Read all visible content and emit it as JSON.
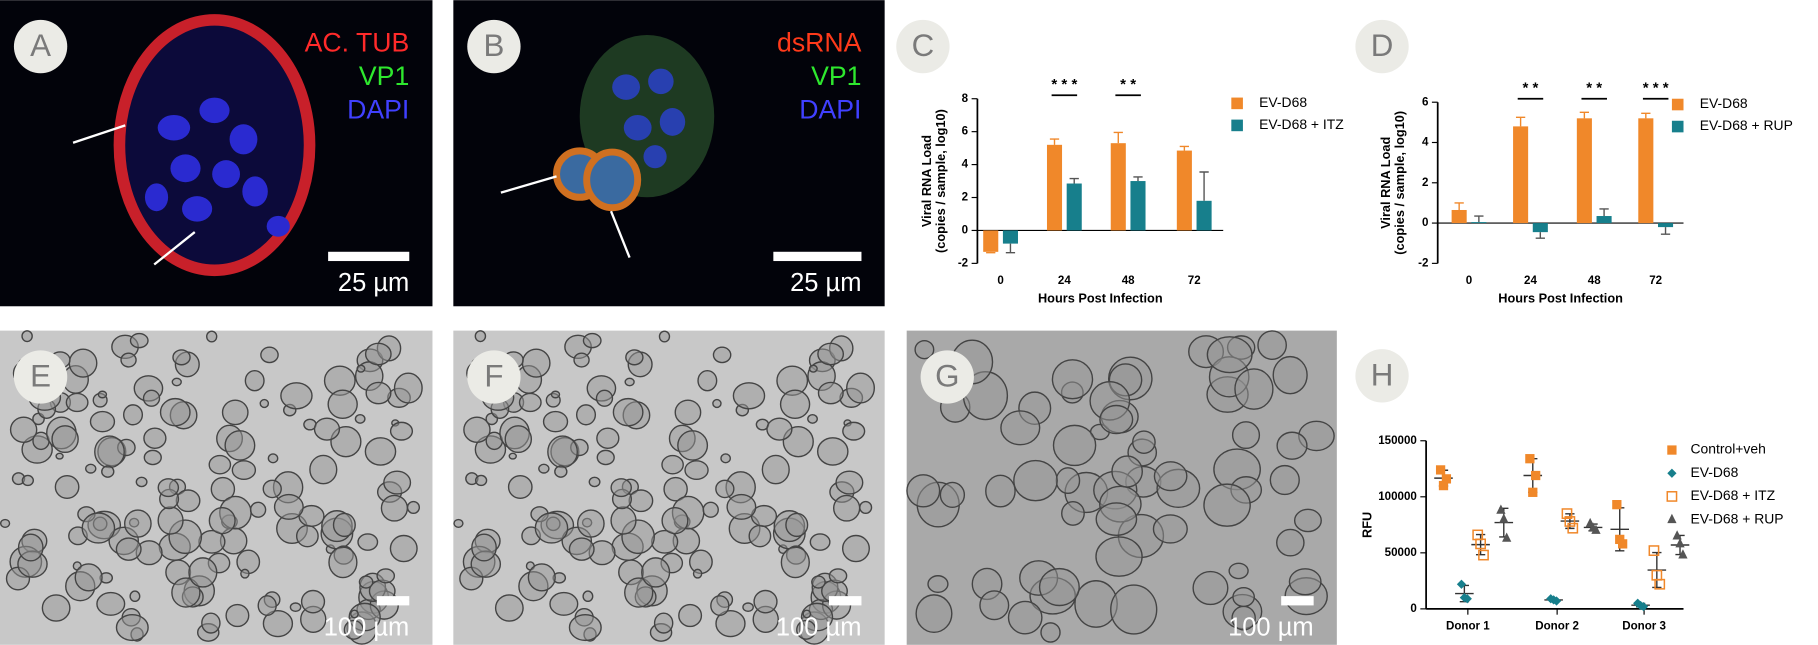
{
  "panels": [
    {
      "letter": "A",
      "labels": [
        {
          "text": "AC. TUB",
          "color": "#ff2a2a"
        },
        {
          "text": "VP1",
          "color": "#2ee82e"
        },
        {
          "text": "DAPI",
          "color": "#4040ff"
        }
      ],
      "scale": "25 µm"
    },
    {
      "letter": "B",
      "labels": [
        {
          "text": "dsRNA",
          "color": "#ff3a1a"
        },
        {
          "text": "VP1",
          "color": "#2ee82e"
        },
        {
          "text": "DAPI",
          "color": "#4040ff"
        }
      ],
      "scale": "25 µm"
    },
    {
      "letter": "E",
      "scale": "100 µm"
    },
    {
      "letter": "F",
      "scale": "100 µm"
    },
    {
      "letter": "G",
      "scale": "100 µm"
    }
  ],
  "chart_data": [
    {
      "type": "bar",
      "panel": "C",
      "xlabel": "Hours Post Infection",
      "ylabel": [
        "Viral RNA Load",
        "(copies / sample, log10)"
      ],
      "categories": [
        "0",
        "24",
        "48",
        "72"
      ],
      "series": [
        {
          "name": "EV-D68",
          "color": "#f0882a",
          "values": [
            -1.3,
            5.2,
            5.3,
            4.85
          ],
          "errors": [
            0.05,
            0.35,
            0.65,
            0.25
          ]
        },
        {
          "name": "EV-D68 + ITZ",
          "color": "#177f8c",
          "values": [
            -0.8,
            2.85,
            3.0,
            1.8
          ],
          "errors": [
            0.55,
            0.3,
            0.25,
            1.75
          ]
        }
      ],
      "significance": [
        null,
        "* * *",
        "* *",
        null
      ],
      "ylim": [
        -2,
        8
      ],
      "yticks": [
        -2,
        0,
        2,
        4,
        6,
        8
      ],
      "legend": "right"
    },
    {
      "type": "bar",
      "panel": "D",
      "xlabel": "Hours Post Infection",
      "ylabel": [
        "Viral RNA Load",
        "(copies / sample, log10)"
      ],
      "categories": [
        "0",
        "24",
        "48",
        "72"
      ],
      "series": [
        {
          "name": "EV-D68",
          "color": "#f0882a",
          "values": [
            0.65,
            4.8,
            5.2,
            5.2
          ],
          "errors": [
            0.35,
            0.45,
            0.3,
            0.25
          ]
        },
        {
          "name": "EV-D68 + RUP",
          "color": "#177f8c",
          "values": [
            0.05,
            -0.45,
            0.35,
            -0.2
          ],
          "errors": [
            0.3,
            0.3,
            0.35,
            0.35
          ]
        }
      ],
      "significance": [
        null,
        "* *",
        "* *",
        "* * *"
      ],
      "ylim": [
        -2,
        6
      ],
      "yticks": [
        -2,
        0,
        2,
        4,
        6
      ],
      "legend": "right"
    },
    {
      "type": "strip",
      "panel": "H",
      "ylabel": "RFU",
      "categories": [
        "Donor 1",
        "Donor 2",
        "Donor 3"
      ],
      "series": [
        {
          "name": "Control+veh",
          "color": "#f0882a",
          "marker": "square",
          "values": [
            [
              124000,
              110000,
              116000
            ],
            [
              134000,
              104000,
              119000
            ],
            [
              93000,
              62000,
              58000
            ]
          ]
        },
        {
          "name": "EV-D68",
          "color": "#177f8c",
          "marker": "diamond",
          "values": [
            [
              22000,
              10000,
              9000
            ],
            [
              9000,
              8000,
              7000
            ],
            [
              5000,
              3000,
              2000
            ]
          ]
        },
        {
          "name": "EV-D68 + ITZ",
          "color": "#f0882a",
          "marker": "open-square",
          "values": [
            [
              66000,
              58000,
              48000
            ],
            [
              85000,
              78000,
              72000
            ],
            [
              52000,
              30000,
              22000
            ]
          ]
        },
        {
          "name": "EV-D68 + RUP",
          "color": "#555555",
          "marker": "triangle",
          "values": [
            [
              88000,
              80000,
              63000
            ],
            [
              76000,
              72000,
              70000
            ],
            [
              65000,
              58000,
              48000
            ]
          ]
        }
      ],
      "ylim": [
        0,
        150000
      ],
      "yticks": [
        0,
        50000,
        100000,
        150000
      ],
      "legend": "right"
    }
  ]
}
